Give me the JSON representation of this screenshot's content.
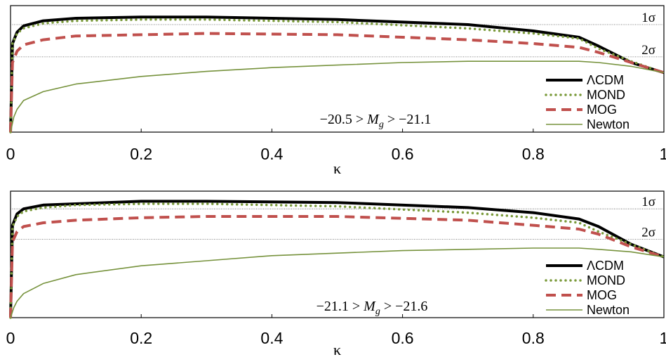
{
  "chart_data": [
    {
      "type": "line",
      "title": "",
      "annotation": "−20.5 > M_g > −21.1",
      "annotation_parts": {
        "left": "−20.5 > ",
        "var": "M",
        "sub": "g",
        "right": " > −21.1"
      },
      "xlabel": "κ",
      "ylabel": "",
      "xlim": [
        0,
        1
      ],
      "ylim": [
        0,
        1
      ],
      "x_ticks": [
        "0",
        "0.2",
        "0.4",
        "0.6",
        "0.8",
        "1"
      ],
      "x_tick_values": [
        0,
        0.2,
        0.4,
        0.6,
        0.8,
        1
      ],
      "reference_lines": [
        {
          "label": "1σ",
          "y": 0.85
        },
        {
          "label": "2σ",
          "y": 0.595
        }
      ],
      "legend": {
        "position": "bottom-right"
      },
      "grid": false,
      "series": [
        {
          "name": "ΛCDM",
          "color": "#000000",
          "style": "solid-thick",
          "x": [
            0,
            0.003,
            0.01,
            0.02,
            0.05,
            0.1,
            0.2,
            0.3,
            0.5,
            0.7,
            0.8,
            0.87,
            0.9,
            0.95,
            1.0
          ],
          "y": [
            0.0,
            0.7,
            0.79,
            0.84,
            0.88,
            0.9,
            0.91,
            0.91,
            0.89,
            0.85,
            0.8,
            0.75,
            0.68,
            0.55,
            0.47
          ]
        },
        {
          "name": "MOND",
          "color": "#7a9a3a",
          "style": "dotted",
          "x": [
            0,
            0.003,
            0.01,
            0.02,
            0.05,
            0.1,
            0.2,
            0.3,
            0.5,
            0.7,
            0.8,
            0.87,
            0.9,
            0.95,
            1.0
          ],
          "y": [
            0.0,
            0.7,
            0.78,
            0.82,
            0.86,
            0.88,
            0.89,
            0.89,
            0.87,
            0.82,
            0.78,
            0.74,
            0.66,
            0.56,
            0.47
          ]
        },
        {
          "name": "MOG",
          "color": "#c0504d",
          "style": "dashed",
          "x": [
            0,
            0.003,
            0.01,
            0.02,
            0.05,
            0.1,
            0.2,
            0.3,
            0.5,
            0.7,
            0.8,
            0.87,
            0.9,
            0.95,
            1.0
          ],
          "y": [
            0.0,
            0.55,
            0.64,
            0.69,
            0.73,
            0.76,
            0.77,
            0.78,
            0.77,
            0.73,
            0.7,
            0.67,
            0.63,
            0.55,
            0.47
          ]
        },
        {
          "name": "Newton",
          "color": "#76923c",
          "style": "solid-thin",
          "x": [
            0,
            0.005,
            0.01,
            0.02,
            0.05,
            0.1,
            0.2,
            0.3,
            0.4,
            0.5,
            0.6,
            0.7,
            0.8,
            0.87,
            0.9,
            0.95,
            1.0
          ],
          "y": [
            0.0,
            0.12,
            0.18,
            0.25,
            0.32,
            0.38,
            0.44,
            0.48,
            0.51,
            0.53,
            0.55,
            0.56,
            0.56,
            0.56,
            0.55,
            0.52,
            0.47
          ]
        }
      ]
    },
    {
      "type": "line",
      "title": "",
      "annotation": "−21.1 > M_g > −21.6",
      "annotation_parts": {
        "left": "−21.1 > ",
        "var": "M",
        "sub": "g",
        "right": " > −21.6"
      },
      "xlabel": "κ",
      "ylabel": "",
      "xlim": [
        0,
        1
      ],
      "ylim": [
        0,
        1
      ],
      "x_ticks": [
        "0",
        "0.2",
        "0.4",
        "0.6",
        "0.8",
        "1"
      ],
      "x_tick_values": [
        0,
        0.2,
        0.4,
        0.6,
        0.8,
        1
      ],
      "reference_lines": [
        {
          "label": "1σ",
          "y": 0.86
        },
        {
          "label": "2σ",
          "y": 0.62
        }
      ],
      "legend": {
        "position": "bottom-right"
      },
      "grid": false,
      "series": [
        {
          "name": "ΛCDM",
          "color": "#000000",
          "style": "solid-thick",
          "x": [
            0,
            0.003,
            0.01,
            0.02,
            0.05,
            0.1,
            0.2,
            0.3,
            0.5,
            0.7,
            0.8,
            0.87,
            0.9,
            0.95,
            1.0
          ],
          "y": [
            0.0,
            0.73,
            0.82,
            0.86,
            0.89,
            0.9,
            0.92,
            0.92,
            0.91,
            0.87,
            0.83,
            0.78,
            0.72,
            0.58,
            0.48
          ]
        },
        {
          "name": "MOND",
          "color": "#7a9a3a",
          "style": "dotted",
          "x": [
            0,
            0.003,
            0.01,
            0.02,
            0.05,
            0.1,
            0.2,
            0.3,
            0.5,
            0.7,
            0.8,
            0.87,
            0.9,
            0.95,
            1.0
          ],
          "y": [
            0.0,
            0.72,
            0.8,
            0.84,
            0.87,
            0.89,
            0.9,
            0.9,
            0.88,
            0.83,
            0.79,
            0.75,
            0.68,
            0.58,
            0.48
          ]
        },
        {
          "name": "MOG",
          "color": "#c0504d",
          "style": "dashed",
          "x": [
            0,
            0.003,
            0.01,
            0.02,
            0.05,
            0.1,
            0.2,
            0.3,
            0.5,
            0.7,
            0.8,
            0.87,
            0.9,
            0.95,
            1.0
          ],
          "y": [
            0.0,
            0.6,
            0.68,
            0.72,
            0.75,
            0.77,
            0.79,
            0.8,
            0.8,
            0.77,
            0.73,
            0.7,
            0.66,
            0.56,
            0.48
          ]
        },
        {
          "name": "Newton",
          "color": "#76923c",
          "style": "solid-thin",
          "x": [
            0,
            0.005,
            0.01,
            0.02,
            0.05,
            0.1,
            0.2,
            0.3,
            0.4,
            0.5,
            0.6,
            0.7,
            0.8,
            0.87,
            0.9,
            0.95,
            1.0
          ],
          "y": [
            0.0,
            0.08,
            0.13,
            0.19,
            0.27,
            0.34,
            0.41,
            0.45,
            0.49,
            0.51,
            0.53,
            0.54,
            0.55,
            0.55,
            0.54,
            0.52,
            0.48
          ]
        }
      ]
    }
  ]
}
